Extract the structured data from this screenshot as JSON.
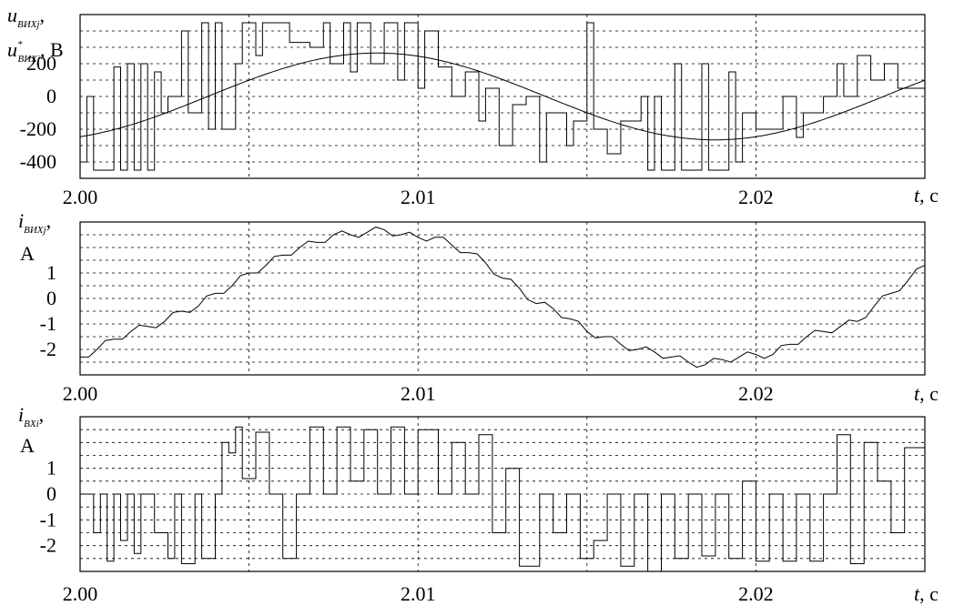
{
  "chart_data": [
    {
      "type": "line",
      "panel": "top",
      "ylabel_main": "u",
      "ylabel_sub": "ВИХj",
      "ylabel_comma": ",",
      "ylabel2_main": "u",
      "ylabel2_sup": "*",
      "ylabel2_sub": "ВИХj",
      "ylabel2_unit": ", В",
      "xlabel_main": "t",
      "xlabel_unit": ", с",
      "x_ticks": [
        "2.00",
        "2.01",
        "2.02"
      ],
      "x_tick_values": [
        2.0,
        2.01,
        2.02
      ],
      "y_ticks": [
        "200",
        "0",
        "-200",
        "-400"
      ],
      "y_tick_values": [
        200,
        0,
        -200,
        -400
      ],
      "xlim": [
        2.0,
        2.025
      ],
      "ylim": [
        -500,
        500
      ],
      "grid": true,
      "series": [
        {
          "kind": "sinusoid",
          "amplitude": 265,
          "frequency_hz": 50,
          "phase_deg": -68,
          "values_note": ""
        },
        {
          "kind": "pwm",
          "levels": [
            -450,
            -180,
            0,
            200,
            450
          ],
          "switch_points": [
            [
              2.0,
              -400
            ],
            [
              2.0002,
              0
            ],
            [
              2.0004,
              -450
            ],
            [
              2.001,
              180
            ],
            [
              2.0012,
              -450
            ],
            [
              2.0014,
              200
            ],
            [
              2.0016,
              -450
            ],
            [
              2.0018,
              200
            ],
            [
              2.002,
              -450
            ],
            [
              2.0022,
              150
            ],
            [
              2.0024,
              -100
            ],
            [
              2.0026,
              0
            ],
            [
              2.003,
              400
            ],
            [
              2.0032,
              -100
            ],
            [
              2.0036,
              450
            ],
            [
              2.0038,
              -200
            ],
            [
              2.004,
              450
            ],
            [
              2.0042,
              -200
            ],
            [
              2.0046,
              200
            ],
            [
              2.0048,
              450
            ],
            [
              2.0052,
              250
            ],
            [
              2.0054,
              450
            ],
            [
              2.0062,
              330
            ],
            [
              2.0068,
              300
            ],
            [
              2.0072,
              450
            ],
            [
              2.0074,
              200
            ],
            [
              2.0078,
              450
            ],
            [
              2.008,
              150
            ],
            [
              2.0082,
              450
            ],
            [
              2.0086,
              200
            ],
            [
              2.009,
              450
            ],
            [
              2.0094,
              100
            ],
            [
              2.0096,
              450
            ],
            [
              2.01,
              50
            ],
            [
              2.0102,
              400
            ],
            [
              2.0106,
              180
            ],
            [
              2.011,
              0
            ],
            [
              2.0114,
              150
            ],
            [
              2.0118,
              -150
            ],
            [
              2.012,
              50
            ],
            [
              2.0124,
              -300
            ],
            [
              2.0128,
              -50
            ],
            [
              2.0132,
              0
            ],
            [
              2.0136,
              -400
            ],
            [
              2.0138,
              -100
            ],
            [
              2.0144,
              -300
            ],
            [
              2.0146,
              -150
            ],
            [
              2.015,
              450
            ],
            [
              2.0152,
              -200
            ],
            [
              2.0156,
              -350
            ],
            [
              2.016,
              -150
            ],
            [
              2.0166,
              0
            ],
            [
              2.0168,
              -450
            ],
            [
              2.017,
              0
            ],
            [
              2.0172,
              -450
            ],
            [
              2.0176,
              200
            ],
            [
              2.0178,
              -450
            ],
            [
              2.0184,
              200
            ],
            [
              2.0186,
              -450
            ],
            [
              2.0192,
              150
            ],
            [
              2.0194,
              -400
            ],
            [
              2.0196,
              -100
            ],
            [
              2.02,
              -200
            ],
            [
              2.0208,
              0
            ],
            [
              2.0212,
              -250
            ],
            [
              2.0214,
              -100
            ],
            [
              2.022,
              0
            ],
            [
              2.0224,
              200
            ],
            [
              2.0226,
              0
            ],
            [
              2.023,
              250
            ],
            [
              2.0234,
              100
            ],
            [
              2.0238,
              200
            ],
            [
              2.0242,
              50
            ],
            [
              2.025,
              100
            ]
          ]
        }
      ]
    },
    {
      "type": "line",
      "panel": "middle",
      "ylabel_main": "i",
      "ylabel_sub": "ВИХj",
      "ylabel_comma": ",",
      "ylabel_unit": "A",
      "xlabel_main": "t",
      "xlabel_unit": ", с",
      "x_ticks": [
        "2.00",
        "2.01",
        "2.02"
      ],
      "x_tick_values": [
        2.0,
        2.01,
        2.02
      ],
      "y_ticks": [
        "1",
        "0",
        "-1",
        "-2"
      ],
      "y_tick_values": [
        1,
        0,
        -1,
        -2
      ],
      "xlim": [
        2.0,
        2.025
      ],
      "ylim": [
        -3,
        3
      ],
      "grid": true,
      "series": [
        {
          "kind": "sampled",
          "x": [
            2.0,
            2.0005,
            2.001,
            2.0015,
            2.002,
            2.0025,
            2.003,
            2.0035,
            2.004,
            2.0045,
            2.005,
            2.0055,
            2.006,
            2.0065,
            2.007,
            2.0075,
            2.008,
            2.0085,
            2.009,
            2.0095,
            2.01,
            2.0105,
            2.011,
            2.0115,
            2.012,
            2.0125,
            2.013,
            2.0135,
            2.014,
            2.0145,
            2.015,
            2.0155,
            2.016,
            2.0165,
            2.017,
            2.0175,
            2.018,
            2.0185,
            2.019,
            2.0195,
            2.02,
            2.0205,
            2.021,
            2.0215,
            2.022,
            2.0225,
            2.023,
            2.0235,
            2.024,
            2.0245,
            2.025
          ],
          "y": [
            -2.3,
            -2.0,
            -1.6,
            -1.3,
            -1.1,
            -0.9,
            -0.5,
            -0.3,
            0.2,
            0.5,
            1.0,
            1.3,
            1.7,
            2.0,
            2.2,
            2.5,
            2.5,
            2.6,
            2.7,
            2.5,
            2.4,
            2.4,
            2.1,
            1.8,
            1.4,
            0.8,
            0.4,
            -0.2,
            -0.4,
            -0.8,
            -1.3,
            -1.5,
            -1.8,
            -2.0,
            -2.1,
            -2.3,
            -2.5,
            -2.6,
            -2.4,
            -2.3,
            -2.2,
            -2.2,
            -1.8,
            -1.5,
            -1.3,
            -1.1,
            -0.9,
            -0.3,
            0.2,
            0.7,
            1.3
          ]
        }
      ]
    },
    {
      "type": "line",
      "panel": "bottom",
      "ylabel_main": "i",
      "ylabel_sub": "BXi",
      "ylabel_comma": ",",
      "ylabel_unit": "A",
      "xlabel_main": "t",
      "xlabel_unit": ", с",
      "x_ticks": [
        "2.00",
        "2.01",
        "2.02"
      ],
      "x_tick_values": [
        2.0,
        2.01,
        2.02
      ],
      "y_ticks": [
        "1",
        "0",
        "-1",
        "-2"
      ],
      "y_tick_values": [
        1,
        0,
        -1,
        -2
      ],
      "xlim": [
        2.0,
        2.025
      ],
      "ylim": [
        -3,
        3
      ],
      "grid": true,
      "series": [
        {
          "kind": "pwm",
          "switch_points": [
            [
              2.0,
              0
            ],
            [
              2.0004,
              -1.5
            ],
            [
              2.0006,
              0
            ],
            [
              2.0008,
              -2.6
            ],
            [
              2.001,
              0
            ],
            [
              2.0012,
              -1.8
            ],
            [
              2.0014,
              0
            ],
            [
              2.0016,
              -2.3
            ],
            [
              2.0018,
              0
            ],
            [
              2.0022,
              -1.5
            ],
            [
              2.0026,
              -2.5
            ],
            [
              2.0028,
              0
            ],
            [
              2.003,
              -2.7
            ],
            [
              2.0034,
              0
            ],
            [
              2.0036,
              -2.5
            ],
            [
              2.004,
              0
            ],
            [
              2.0042,
              2.0
            ],
            [
              2.0044,
              1.6
            ],
            [
              2.0046,
              2.6
            ],
            [
              2.0048,
              0.6
            ],
            [
              2.0052,
              2.4
            ],
            [
              2.0056,
              0
            ],
            [
              2.006,
              -2.5
            ],
            [
              2.0064,
              0
            ],
            [
              2.0068,
              2.6
            ],
            [
              2.0072,
              0
            ],
            [
              2.0076,
              2.6
            ],
            [
              2.008,
              0.5
            ],
            [
              2.0084,
              2.5
            ],
            [
              2.0088,
              0
            ],
            [
              2.0092,
              2.6
            ],
            [
              2.0096,
              0
            ],
            [
              2.01,
              2.5
            ],
            [
              2.0106,
              0
            ],
            [
              2.011,
              2.0
            ],
            [
              2.0114,
              0
            ],
            [
              2.0118,
              2.3
            ],
            [
              2.0122,
              -1.5
            ],
            [
              2.0126,
              1.0
            ],
            [
              2.013,
              -2.8
            ],
            [
              2.0136,
              0
            ],
            [
              2.014,
              -1.5
            ],
            [
              2.0144,
              0
            ],
            [
              2.0148,
              -2.5
            ],
            [
              2.0152,
              -1.8
            ],
            [
              2.0156,
              0
            ],
            [
              2.016,
              -2.8
            ],
            [
              2.0164,
              0
            ],
            [
              2.0168,
              -3.0
            ],
            [
              2.0172,
              0
            ],
            [
              2.0176,
              -2.5
            ],
            [
              2.018,
              0
            ],
            [
              2.0184,
              -2.4
            ],
            [
              2.0188,
              0
            ],
            [
              2.0192,
              -2.5
            ],
            [
              2.0196,
              0.5
            ],
            [
              2.02,
              -2.6
            ],
            [
              2.0204,
              0
            ],
            [
              2.0208,
              -2.6
            ],
            [
              2.0212,
              0
            ],
            [
              2.0216,
              -2.6
            ],
            [
              2.022,
              0
            ],
            [
              2.0224,
              2.3
            ],
            [
              2.0228,
              -2.7
            ],
            [
              2.0232,
              2.0
            ],
            [
              2.0236,
              0.5
            ],
            [
              2.024,
              -1.5
            ],
            [
              2.0244,
              1.8
            ],
            [
              2.025,
              1.7
            ]
          ]
        }
      ]
    }
  ]
}
